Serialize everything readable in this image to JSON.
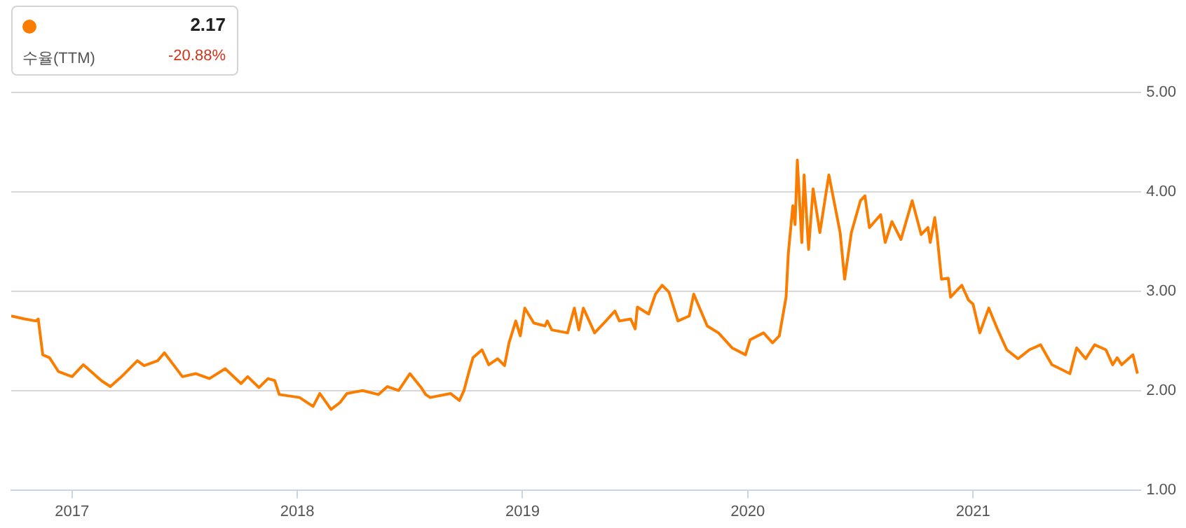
{
  "chart_data": {
    "type": "line",
    "annotations": [
      "2.17",
      "수율(TTM)",
      "-20.88%"
    ],
    "x": [
      2016.73,
      2016.79,
      2016.84,
      2016.85,
      2016.87,
      2016.9,
      2016.94,
      2017.0,
      2017.05,
      2017.13,
      2017.17,
      2017.22,
      2017.29,
      2017.32,
      2017.38,
      2017.41,
      2017.49,
      2017.55,
      2017.61,
      2017.68,
      2017.75,
      2017.78,
      2017.83,
      2017.87,
      2017.9,
      2017.92,
      2018.01,
      2018.07,
      2018.1,
      2018.15,
      2018.19,
      2018.22,
      2018.29,
      2018.36,
      2018.4,
      2018.45,
      2018.5,
      2018.55,
      2018.57,
      2018.59,
      2018.68,
      2018.72,
      2018.74,
      2018.76,
      2018.78,
      2018.82,
      2018.85,
      2018.89,
      2018.92,
      2018.94,
      2018.97,
      2018.99,
      2019.01,
      2019.05,
      2019.1,
      2019.11,
      2019.13,
      2019.2,
      2019.23,
      2019.25,
      2019.27,
      2019.32,
      2019.37,
      2019.41,
      2019.43,
      2019.48,
      2019.5,
      2019.51,
      2019.56,
      2019.59,
      2019.62,
      2019.65,
      2019.69,
      2019.74,
      2019.76,
      2019.82,
      2019.87,
      2019.93,
      2019.99,
      2020.01,
      2020.07,
      2020.11,
      2020.14,
      2020.17,
      2020.18,
      2020.2,
      2020.21,
      2020.22,
      2020.24,
      2020.25,
      2020.27,
      2020.29,
      2020.32,
      2020.34,
      2020.36,
      2020.41,
      2020.43,
      2020.46,
      2020.5,
      2020.52,
      2020.54,
      2020.59,
      2020.61,
      2020.64,
      2020.68,
      2020.73,
      2020.77,
      2020.8,
      2020.81,
      2020.83,
      2020.84,
      2020.86,
      2020.89,
      2020.9,
      2020.95,
      2020.98,
      2021.0,
      2021.03,
      2021.07,
      2021.11,
      2021.15,
      2021.2,
      2021.25,
      2021.3,
      2021.35,
      2021.43,
      2021.46,
      2021.5,
      2021.54,
      2021.59,
      2021.62,
      2021.64,
      2021.66,
      2021.71,
      2021.73
    ],
    "series": [
      {
        "color": "#fa7d00",
        "values": [
          2.75,
          2.72,
          2.7,
          2.72,
          2.36,
          2.33,
          2.19,
          2.14,
          2.26,
          2.1,
          2.04,
          2.14,
          2.3,
          2.25,
          2.3,
          2.38,
          2.14,
          2.17,
          2.12,
          2.22,
          2.07,
          2.14,
          2.03,
          2.12,
          2.1,
          1.96,
          1.93,
          1.84,
          1.97,
          1.81,
          1.88,
          1.97,
          2.0,
          1.96,
          2.04,
          2.0,
          2.17,
          2.03,
          1.96,
          1.93,
          1.97,
          1.9,
          2.0,
          2.17,
          2.33,
          2.41,
          2.26,
          2.32,
          2.25,
          2.48,
          2.7,
          2.55,
          2.83,
          2.68,
          2.65,
          2.7,
          2.61,
          2.58,
          2.83,
          2.61,
          2.83,
          2.58,
          2.7,
          2.8,
          2.7,
          2.72,
          2.62,
          2.84,
          2.77,
          2.97,
          3.06,
          2.99,
          2.7,
          2.75,
          2.97,
          2.65,
          2.58,
          2.43,
          2.36,
          2.51,
          2.58,
          2.48,
          2.55,
          2.94,
          3.38,
          3.86,
          3.67,
          4.32,
          3.49,
          4.17,
          3.42,
          4.03,
          3.59,
          3.88,
          4.17,
          3.59,
          3.12,
          3.59,
          3.91,
          3.96,
          3.64,
          3.77,
          3.49,
          3.7,
          3.52,
          3.91,
          3.57,
          3.64,
          3.49,
          3.74,
          3.57,
          3.12,
          3.13,
          2.94,
          3.06,
          2.91,
          2.87,
          2.58,
          2.83,
          2.61,
          2.41,
          2.32,
          2.41,
          2.46,
          2.26,
          2.17,
          2.43,
          2.32,
          2.46,
          2.41,
          2.26,
          2.33,
          2.26,
          2.36,
          2.17
        ]
      }
    ],
    "xlim": [
      2016.73,
      2021.75
    ],
    "xticks": [
      2017,
      2018,
      2019,
      2020,
      2021
    ],
    "ylim": [
      1,
      5
    ],
    "yticks": [
      {
        "value": 1,
        "label": "1.00"
      },
      {
        "value": 2,
        "label": "2.00"
      },
      {
        "value": 3,
        "label": "3.00"
      },
      {
        "value": 4,
        "label": "4.00"
      },
      {
        "value": 5,
        "label": "5.00"
      }
    ],
    "grid": "y",
    "legend": false,
    "marker": "none",
    "line_style": "solid"
  }
}
